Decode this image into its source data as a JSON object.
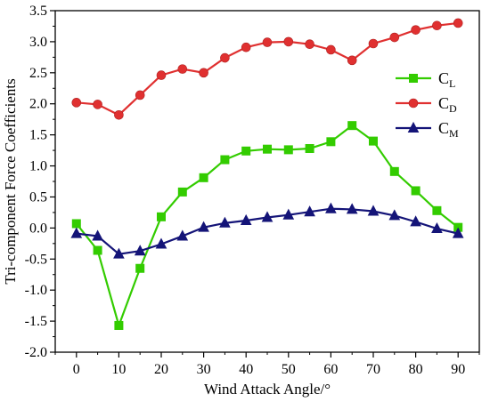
{
  "chart_data": {
    "type": "line",
    "xlabel": "Wind Attack Angle/°",
    "ylabel": "Tri-component Force Coefficients",
    "xlim": [
      -5,
      95
    ],
    "ylim": [
      -2.0,
      3.5
    ],
    "xticks": [
      0,
      10,
      20,
      30,
      40,
      50,
      60,
      70,
      80,
      90
    ],
    "yticks": [
      -2.0,
      -1.5,
      -1.0,
      -0.5,
      0.0,
      0.5,
      1.0,
      1.5,
      2.0,
      2.5,
      3.0,
      3.5
    ],
    "grid": false,
    "legend_position": "right",
    "x": [
      0,
      5,
      10,
      15,
      20,
      25,
      30,
      35,
      40,
      45,
      50,
      55,
      60,
      65,
      70,
      75,
      80,
      85,
      90
    ],
    "series": [
      {
        "name": "C_L",
        "label_main": "C",
        "label_sub": "L",
        "color": "#33cc00",
        "marker": "square",
        "values": [
          0.07,
          -0.36,
          -1.57,
          -0.65,
          0.18,
          0.58,
          0.81,
          1.1,
          1.24,
          1.27,
          1.26,
          1.28,
          1.39,
          1.65,
          1.4,
          0.91,
          0.6,
          0.28,
          0.01
        ]
      },
      {
        "name": "C_D",
        "label_main": "C",
        "label_sub": "D",
        "color": "#e03030",
        "marker": "circle",
        "values": [
          2.02,
          1.99,
          1.82,
          2.14,
          2.46,
          2.56,
          2.5,
          2.74,
          2.91,
          2.99,
          3.0,
          2.96,
          2.87,
          2.7,
          2.97,
          3.07,
          3.19,
          3.26,
          3.3
        ]
      },
      {
        "name": "C_M",
        "label_main": "C",
        "label_sub": "M",
        "color": "#141478",
        "marker": "triangle",
        "values": [
          -0.09,
          -0.13,
          -0.42,
          -0.37,
          -0.26,
          -0.13,
          0.01,
          0.08,
          0.12,
          0.17,
          0.21,
          0.26,
          0.31,
          0.3,
          0.27,
          0.2,
          0.1,
          -0.01,
          -0.09
        ]
      }
    ]
  }
}
